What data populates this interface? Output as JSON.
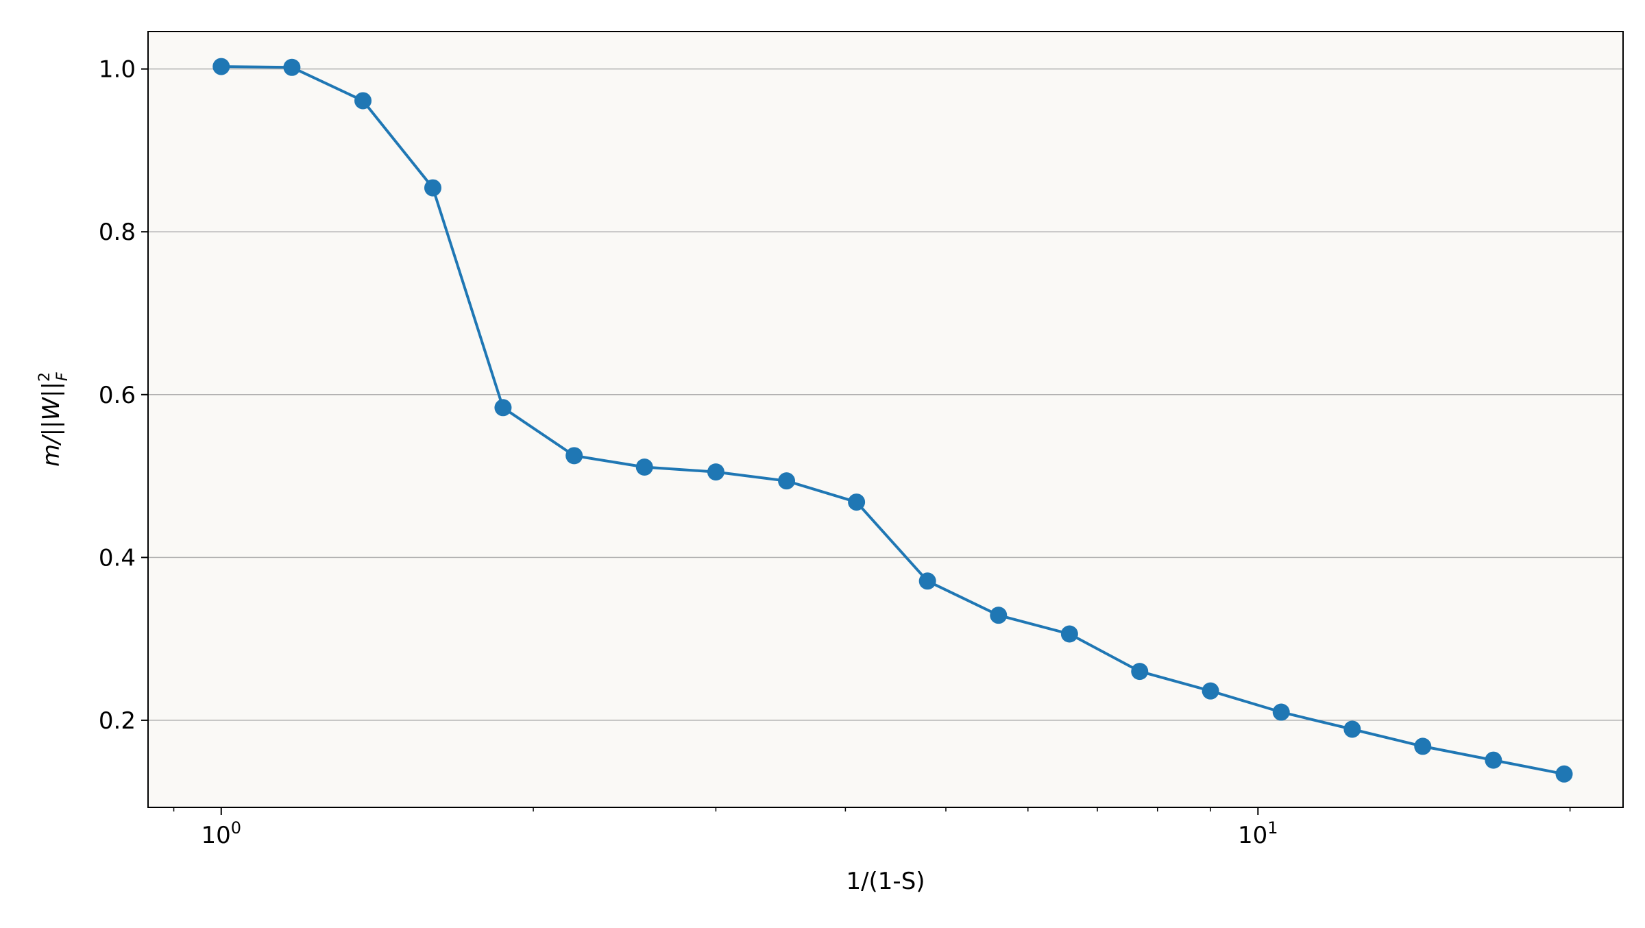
{
  "chart_data": {
    "type": "line",
    "title": "",
    "xlabel": "1/(1-S)",
    "ylabel": {
      "main": "m/||W||",
      "superscript": "2",
      "subscript": "F"
    },
    "xscale": "log",
    "xlim": [
      0.85,
      22.5
    ],
    "ylim": [
      0.093,
      1.046
    ],
    "grid": "y-major",
    "legend": "none",
    "background_color": "#faf9f6",
    "series_color": "#1f77b4",
    "grid_color": "#b0b0b0",
    "x_ticks": [
      {
        "value": 1,
        "base": "10",
        "exp": "0"
      },
      {
        "value": 10,
        "base": "10",
        "exp": "1"
      }
    ],
    "y_ticks": [
      {
        "value": 0.2,
        "label": "0.2"
      },
      {
        "value": 0.4,
        "label": "0.4"
      },
      {
        "value": 0.6,
        "label": "0.6"
      },
      {
        "value": 0.8,
        "label": "0.8"
      },
      {
        "value": 1.0,
        "label": "1.0"
      }
    ],
    "series": [
      {
        "name": "m/||W||_F^2",
        "x": [
          1.0,
          1.17,
          1.37,
          1.6,
          1.87,
          2.19,
          2.56,
          3.0,
          3.51,
          4.1,
          4.8,
          5.62,
          6.58,
          7.69,
          9.0,
          10.53,
          12.33,
          14.42,
          16.87,
          19.74
        ],
        "y": [
          1.003,
          1.002,
          0.961,
          0.854,
          0.584,
          0.525,
          0.511,
          0.505,
          0.494,
          0.468,
          0.371,
          0.329,
          0.306,
          0.26,
          0.236,
          0.21,
          0.189,
          0.168,
          0.151,
          0.134
        ]
      }
    ]
  }
}
